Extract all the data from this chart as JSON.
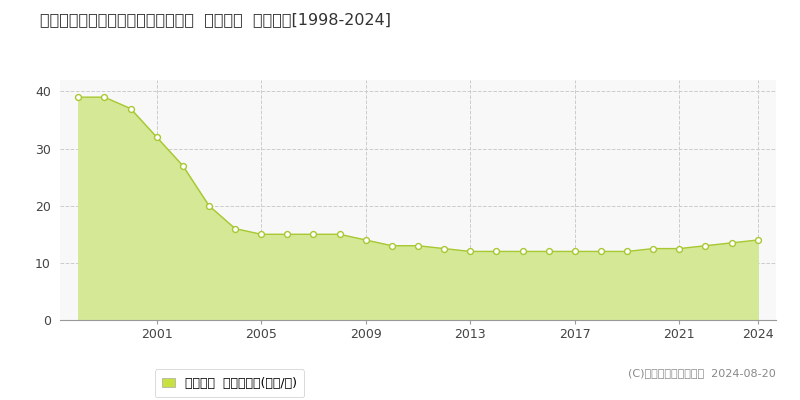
{
  "title": "兵庫県明石市貴崎５丁目８９番５外  地価公示  地価推移[1998-2024]",
  "years": [
    1998,
    1999,
    2000,
    2001,
    2002,
    2003,
    2004,
    2005,
    2006,
    2007,
    2008,
    2009,
    2010,
    2011,
    2012,
    2013,
    2014,
    2015,
    2016,
    2017,
    2018,
    2019,
    2020,
    2021,
    2022,
    2023,
    2024
  ],
  "values": [
    39,
    39,
    37,
    32,
    27,
    20,
    16,
    15,
    15,
    15,
    15,
    14,
    13,
    13,
    12.5,
    12,
    12,
    12,
    12,
    12,
    12,
    12,
    12.5,
    12.5,
    13,
    13.5,
    14
  ],
  "line_color": "#a8c832",
  "fill_color": "#d4e896",
  "marker_facecolor": "#ffffff",
  "marker_edgecolor": "#a8c832",
  "background_color": "#ffffff",
  "plot_bg_color": "#f8f8f8",
  "grid_color": "#cccccc",
  "ylim": [
    0,
    42
  ],
  "yticks": [
    0,
    10,
    20,
    30,
    40
  ],
  "xticks": [
    2001,
    2005,
    2009,
    2013,
    2017,
    2021,
    2024
  ],
  "xlim": [
    1997.3,
    2024.7
  ],
  "legend_label": "地価公示  平均坪単価(万円/坪)",
  "legend_color": "#c8e040",
  "copyright_text": "(C)土地価格ドットコム  2024-08-20",
  "title_fontsize": 11.5,
  "tick_fontsize": 9,
  "legend_fontsize": 9,
  "copyright_fontsize": 8
}
